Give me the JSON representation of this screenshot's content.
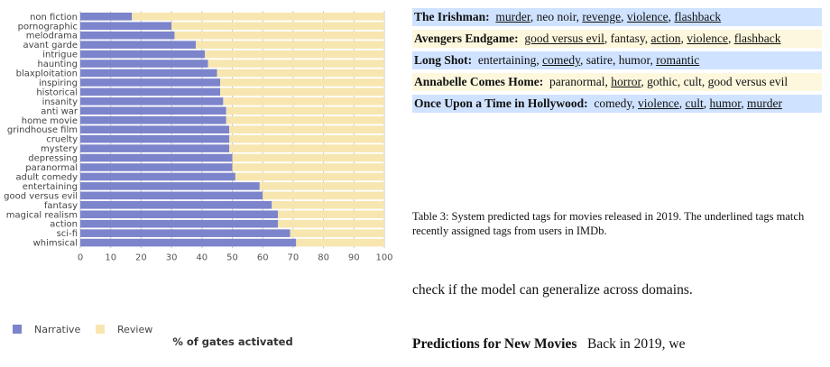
{
  "chart_data": {
    "type": "bar",
    "orientation": "horizontal",
    "stacked": true,
    "categories": [
      "non fiction",
      "pornographic",
      "melodrama",
      "avant garde",
      "intrigue",
      "haunting",
      "blaxploitation",
      "inspiring",
      "historical",
      "insanity",
      "anti war",
      "home movie",
      "grindhouse film",
      "cruelty",
      "mystery",
      "depressing",
      "paranormal",
      "adult comedy",
      "entertaining",
      "good versus evil",
      "fantasy",
      "magical realism",
      "action",
      "sci-fi",
      "whimsical"
    ],
    "series": [
      {
        "name": "Narrative",
        "color": "#7c84cc",
        "values": [
          17,
          30,
          31,
          38,
          41,
          42,
          45,
          46,
          46,
          47,
          48,
          48,
          49,
          49,
          49,
          50,
          50,
          51,
          59,
          60,
          63,
          65,
          65,
          69,
          71
        ]
      },
      {
        "name": "Review",
        "color": "#f8e6b0",
        "values": [
          83,
          70,
          69,
          62,
          59,
          58,
          55,
          54,
          54,
          53,
          52,
          52,
          51,
          51,
          51,
          50,
          50,
          49,
          41,
          40,
          37,
          35,
          35,
          31,
          29
        ]
      }
    ],
    "xlabel": "% of gates activated",
    "ylabel": "",
    "xlim": [
      0,
      100
    ],
    "xticks": [
      0,
      10,
      20,
      30,
      40,
      50,
      60,
      70,
      80,
      90,
      100
    ],
    "grid": true,
    "legend_position": "bottom-left"
  },
  "table": {
    "rows": [
      {
        "movie": "The Irishman:",
        "tags": [
          {
            "t": "murder",
            "u": true
          },
          {
            "t": "neo noir",
            "u": false
          },
          {
            "t": "revenge",
            "u": true
          },
          {
            "t": "violence",
            "u": true
          },
          {
            "t": "flashback",
            "u": true
          }
        ]
      },
      {
        "movie": "Avengers Endgame:",
        "tags": [
          {
            "t": "good versus evil",
            "u": true
          },
          {
            "t": "fantasy",
            "u": false
          },
          {
            "t": "action",
            "u": true
          },
          {
            "t": "violence",
            "u": true
          },
          {
            "t": "flashback",
            "u": true
          }
        ]
      },
      {
        "movie": "Long Shot:",
        "tags": [
          {
            "t": "entertaining",
            "u": false
          },
          {
            "t": "comedy",
            "u": true
          },
          {
            "t": "satire",
            "u": false
          },
          {
            "t": "humor",
            "u": false
          },
          {
            "t": "romantic",
            "u": true
          }
        ]
      },
      {
        "movie": "Annabelle Comes Home:",
        "tags": [
          {
            "t": "paranormal",
            "u": false
          },
          {
            "t": "horror",
            "u": true
          },
          {
            "t": "gothic",
            "u": false
          },
          {
            "t": "cult",
            "u": false
          },
          {
            "t": "good versus evil",
            "u": false
          }
        ]
      },
      {
        "movie": "Once Upon a Time in Hollywood:",
        "tags": [
          {
            "t": "comedy",
            "u": false
          },
          {
            "t": "violence",
            "u": true
          },
          {
            "t": "cult",
            "u": true
          },
          {
            "t": "humor",
            "u": true
          },
          {
            "t": "murder",
            "u": true
          }
        ]
      }
    ],
    "caption": "Table 3: System predicted tags for movies released in 2019. The underlined tags match recently assigned tags from users in IMDb."
  },
  "body": {
    "line1": "check if the model can generalize across domains.",
    "heading": "Predictions for New Movies",
    "line2": "Back in 2019, we"
  }
}
